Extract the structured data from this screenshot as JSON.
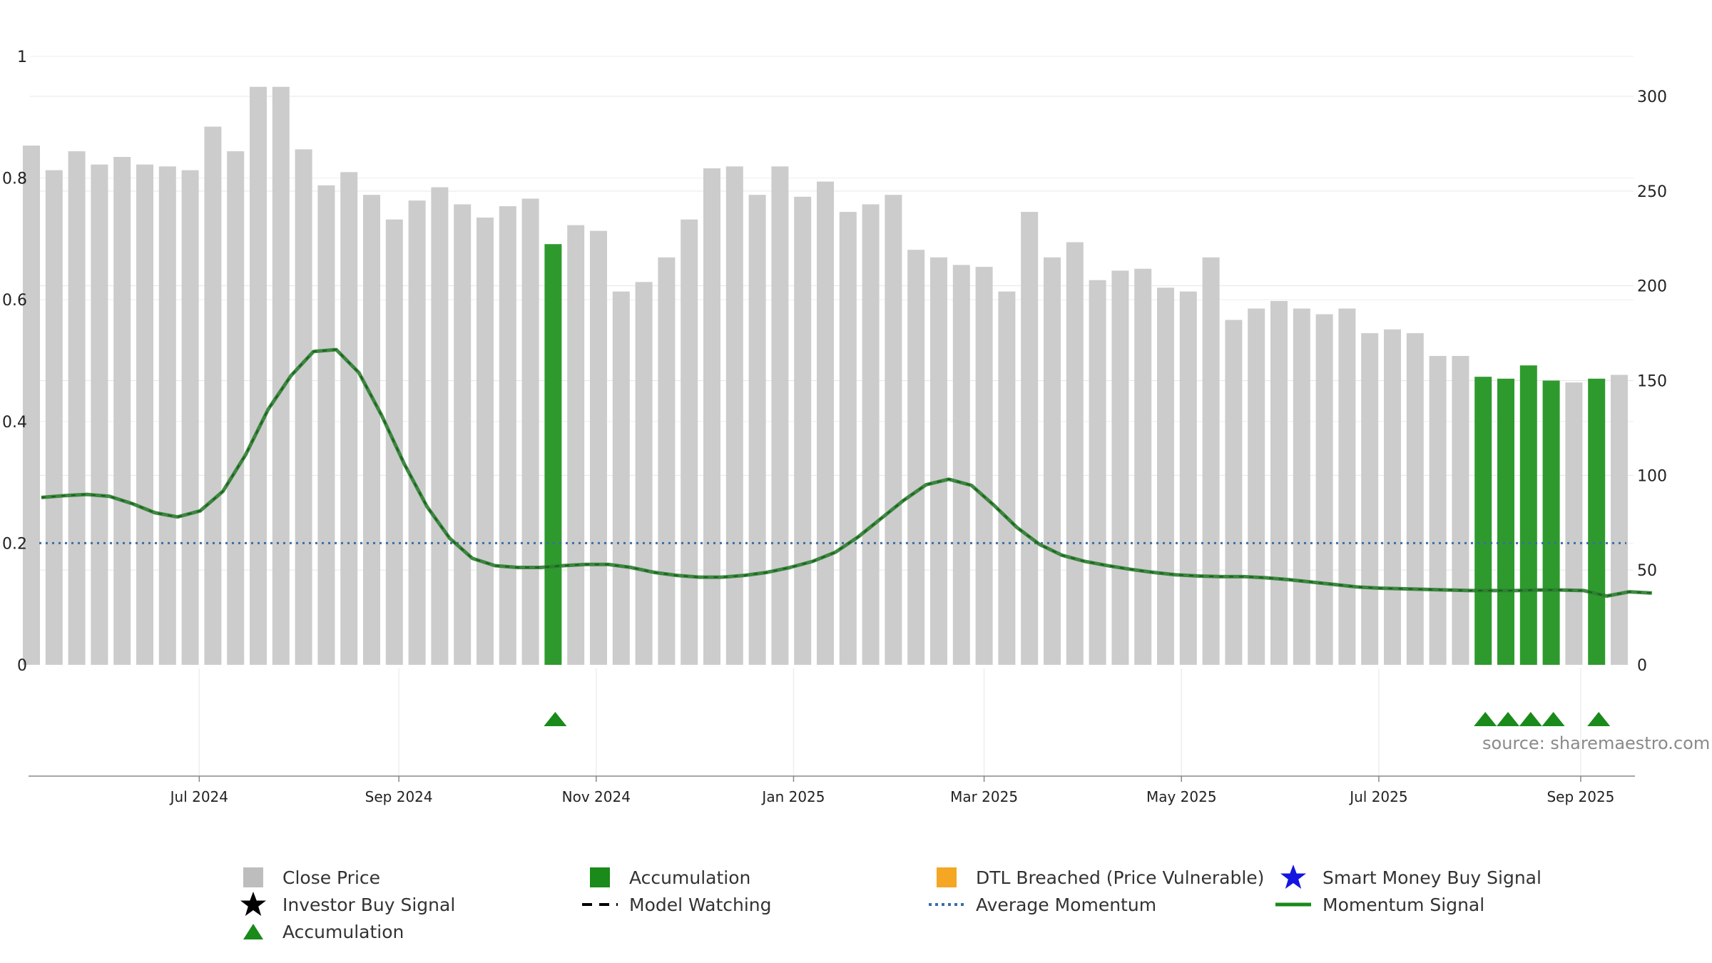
{
  "chart_data": {
    "type": "bar",
    "x_axis": {
      "tick_labels": [
        "Jul 2024",
        "Sep 2024",
        "Nov 2024",
        "Jan 2025",
        "Mar 2025",
        "May 2025",
        "Jul 2025",
        "Sep 2025"
      ],
      "tick_weeks": [
        7.4,
        16.2,
        24.9,
        33.6,
        42.0,
        50.7,
        59.4,
        68.3
      ]
    },
    "left_axis": {
      "ylim": [
        0,
        1
      ],
      "ticks": [
        "0",
        "0.2",
        "0.4",
        "0.6",
        "0.8",
        "1"
      ],
      "tick_values": [
        0,
        0.2,
        0.4,
        0.6,
        0.8,
        1
      ]
    },
    "right_axis": {
      "ylim": [
        0,
        320
      ],
      "ticks": [
        "0",
        "50",
        "100",
        "150",
        "200",
        "250",
        "300"
      ],
      "tick_values": [
        0,
        50,
        100,
        150,
        200,
        250,
        300
      ]
    },
    "close_price": [
      274,
      261,
      271,
      264,
      268,
      264,
      263,
      261,
      284,
      271,
      305,
      305,
      272,
      253,
      260,
      248,
      235,
      245,
      252,
      243,
      236,
      242,
      246,
      222,
      232,
      229,
      197,
      202,
      215,
      235,
      262,
      263,
      248,
      263,
      247,
      255,
      239,
      243,
      248,
      219,
      215,
      211,
      210,
      197,
      239,
      215,
      223,
      203,
      208,
      209,
      199,
      197,
      215,
      182,
      188,
      192,
      188,
      185,
      188,
      175,
      177,
      175,
      163,
      163,
      152,
      151,
      158,
      150,
      149,
      151,
      153
    ],
    "accumulation_weeks": [
      23,
      64,
      65,
      66,
      67,
      69
    ],
    "momentum_signal": [
      0.275,
      0.278,
      0.28,
      0.277,
      0.265,
      0.25,
      0.243,
      0.253,
      0.285,
      0.345,
      0.42,
      0.475,
      0.515,
      0.518,
      0.48,
      0.41,
      0.33,
      0.26,
      0.208,
      0.175,
      0.163,
      0.16,
      0.16,
      0.163,
      0.165,
      0.165,
      0.16,
      0.152,
      0.147,
      0.144,
      0.144,
      0.147,
      0.152,
      0.16,
      0.17,
      0.185,
      0.21,
      0.24,
      0.27,
      0.296,
      0.305,
      0.295,
      0.262,
      0.226,
      0.198,
      0.18,
      0.17,
      0.163,
      0.157,
      0.152,
      0.148,
      0.146,
      0.145,
      0.145,
      0.143,
      0.14,
      0.136,
      0.132,
      0.128,
      0.126,
      0.125,
      0.124,
      0.123,
      0.122,
      0.122,
      0.122,
      0.123,
      0.123,
      0.122,
      0.113,
      0.12,
      0.118
    ],
    "average_momentum": 0.2,
    "source": "source: sharemaestro.com",
    "legend": [
      {
        "label": "Close Price",
        "symbol": "gray-square"
      },
      {
        "label": "Accumulation",
        "symbol": "green-square"
      },
      {
        "label": "DTL Breached (Price Vulnerable)",
        "symbol": "orange-square"
      },
      {
        "label": "Smart Money Buy Signal",
        "symbol": "blue-star"
      },
      {
        "label": "Investor Buy Signal",
        "symbol": "black-star"
      },
      {
        "label": "Model Watching",
        "symbol": "dashed-black-line"
      },
      {
        "label": "Average Momentum",
        "symbol": "dotted-blue-line"
      },
      {
        "label": "Momentum Signal",
        "symbol": "green-line"
      },
      {
        "label": "Accumulation",
        "symbol": "green-triangle"
      }
    ],
    "colors": {
      "close_price": "#cccccc",
      "accumulation": "#2e9a2e",
      "momentum": "#2e7d32",
      "average_momentum": "#3a6ea5",
      "dtl_breached": "#f5a623",
      "smart_money": "#1515e0",
      "investor": "#000000",
      "triangle": "#1a8a1a"
    }
  }
}
